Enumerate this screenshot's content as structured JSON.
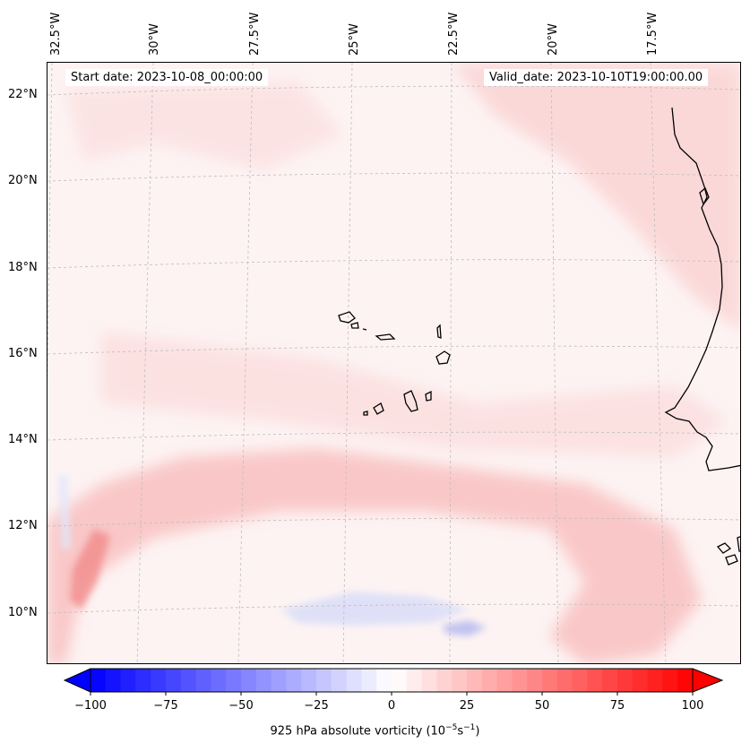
{
  "header": {
    "start_date": "Start date: 2023-10-08_00:00:00",
    "valid_date": "Valid_date: 2023-10-10T19:00:00.00"
  },
  "axes": {
    "longitude_labels": [
      "32.5°W",
      "30°W",
      "27.5°W",
      "25°W",
      "22.5°W",
      "20°W",
      "17.5°W"
    ],
    "latitude_labels": [
      "22°N",
      "20°N",
      "18°N",
      "16°N",
      "14°N",
      "12°N",
      "10°N"
    ]
  },
  "colorbar": {
    "label_prefix": "925 hPa absolute vorticity (10",
    "label_exp1": "−5",
    "label_mid": "s",
    "label_exp2": "−1",
    "label_suffix": ")",
    "ticks": [
      "−100",
      "−75",
      "−50",
      "−25",
      "0",
      "25",
      "50",
      "75",
      "100"
    ],
    "min": -100,
    "max": 100,
    "low_color": "#0000ff",
    "mid_color": "#ffffff",
    "high_color": "#ff0000"
  },
  "colors": {
    "land_outline": "#000000",
    "grid": "#bdbdbd"
  }
}
